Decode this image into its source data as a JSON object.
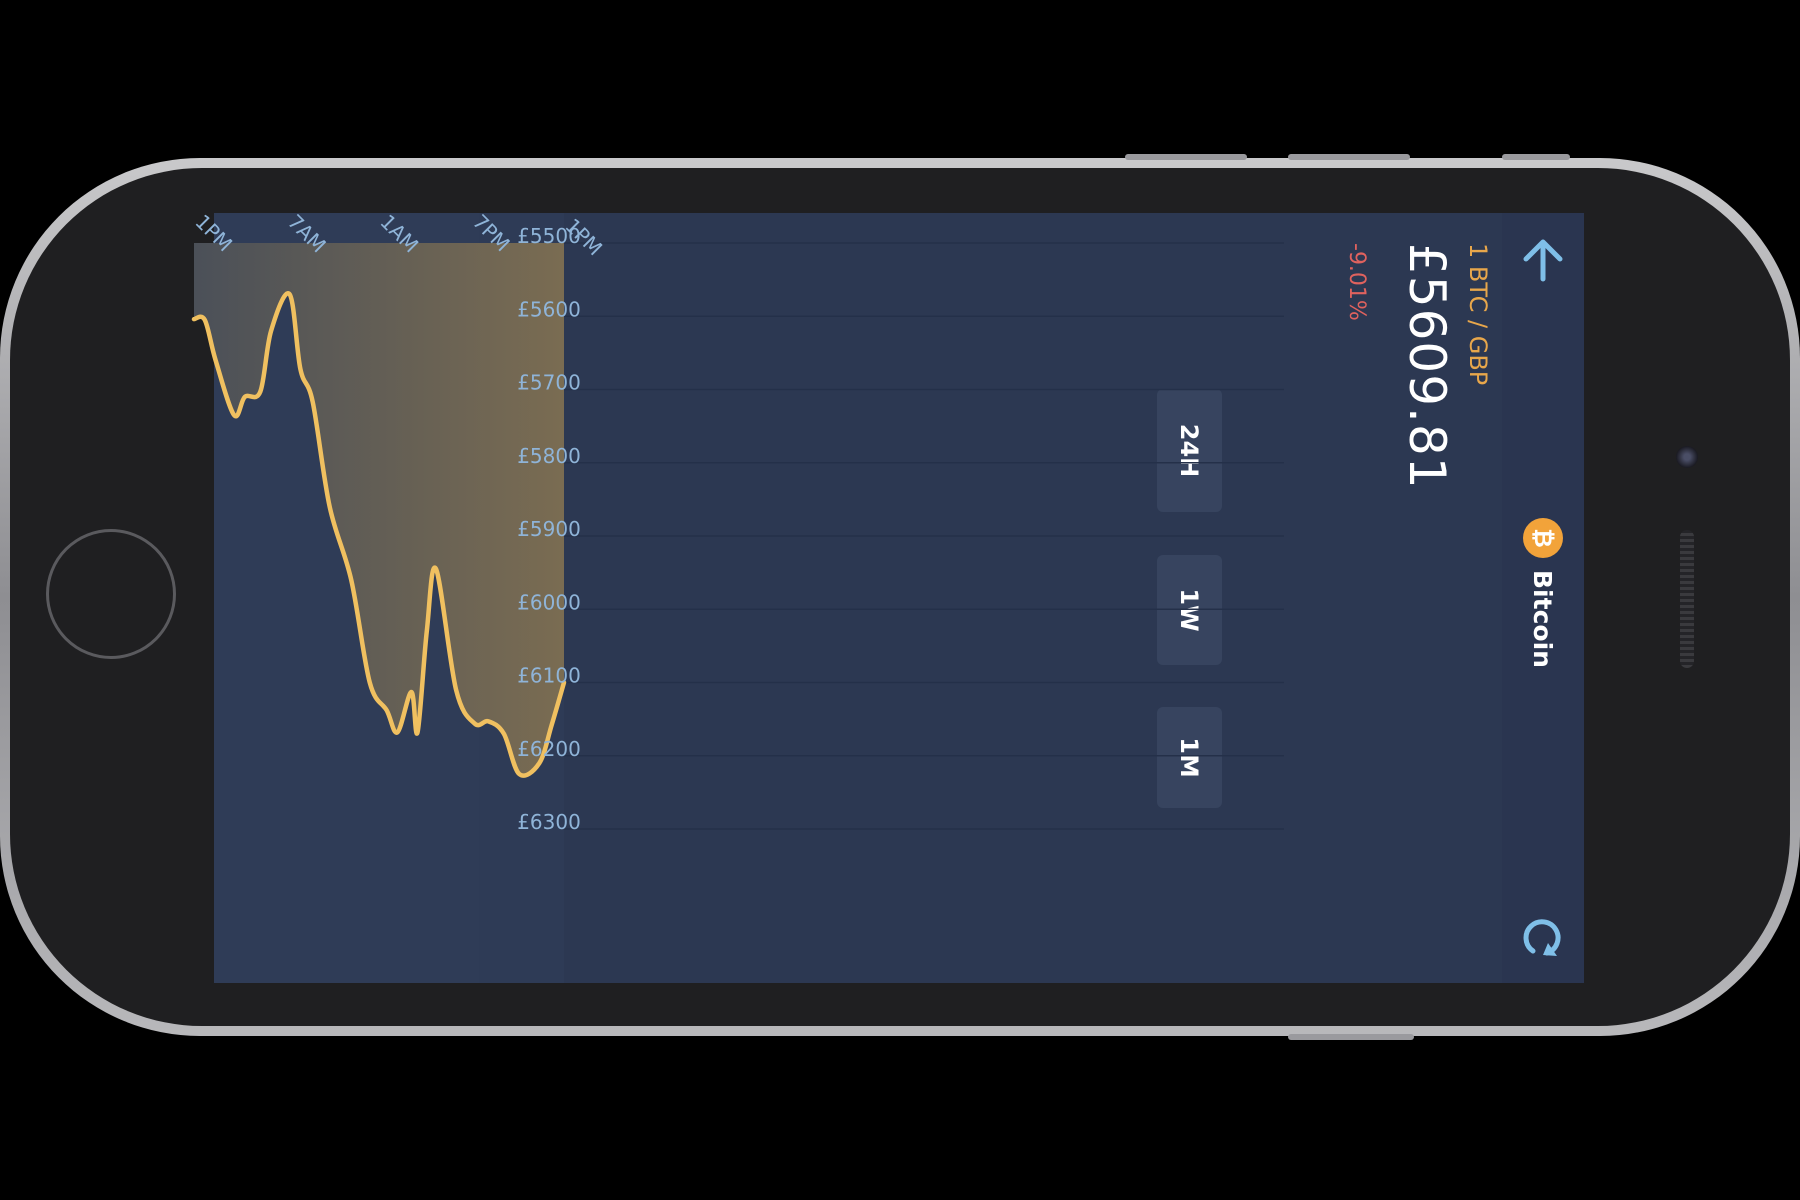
{
  "header": {
    "back_icon": "arrow-left-icon",
    "refresh_icon": "refresh-icon",
    "coin_icon": "bitcoin-icon",
    "coin_symbol": "₿",
    "coin_name": "Bitcoin"
  },
  "quote": {
    "pair": "1 BTC / GBP",
    "price": "£5609.81",
    "change": "-9.01%"
  },
  "tabs": [
    {
      "label": "24H"
    },
    {
      "label": "1W"
    },
    {
      "label": "1M"
    }
  ],
  "colors": {
    "background": "#2c3852",
    "accent": "#f0c060",
    "pair_text": "#e8a74b",
    "negative": "#e0625e",
    "axis_text": "#8fb4d8",
    "icon": "#7fbfe8"
  },
  "chart_data": {
    "type": "area",
    "orientation": "rotated",
    "xlabel": "",
    "ylabel": "",
    "x_ticks": [
      "1PM",
      "7PM",
      "1AM",
      "7AM",
      "1PM"
    ],
    "y_ticks": [
      "£5500",
      "£5600",
      "£5700",
      "£5800",
      "£5900",
      "£6000",
      "£6100",
      "£6200",
      "£6300"
    ],
    "ylim": [
      5500,
      6300
    ],
    "x_range_hours": [
      0,
      24
    ],
    "grid": true,
    "series": [
      {
        "x": [
          0,
          0.8,
          1.6,
          2.9,
          3.9,
          4.9,
          5.8,
          7.0,
          8.3,
          8.9,
          9.5,
          9.9,
          10.8,
          11.5,
          12.6,
          13.8,
          15.2,
          16.3,
          17.1,
          17.8,
          19.0,
          19.7,
          20.7,
          21.4,
          22.6,
          23.3,
          24.0
        ],
        "y": [
          6100,
          6158,
          6210,
          6225,
          6170,
          6153,
          6156,
          6110,
          5945,
          6030,
          6168,
          6113,
          6168,
          6138,
          6100,
          5960,
          5860,
          5717,
          5672,
          5570,
          5620,
          5703,
          5710,
          5735,
          5660,
          5605,
          5604
        ]
      }
    ]
  }
}
